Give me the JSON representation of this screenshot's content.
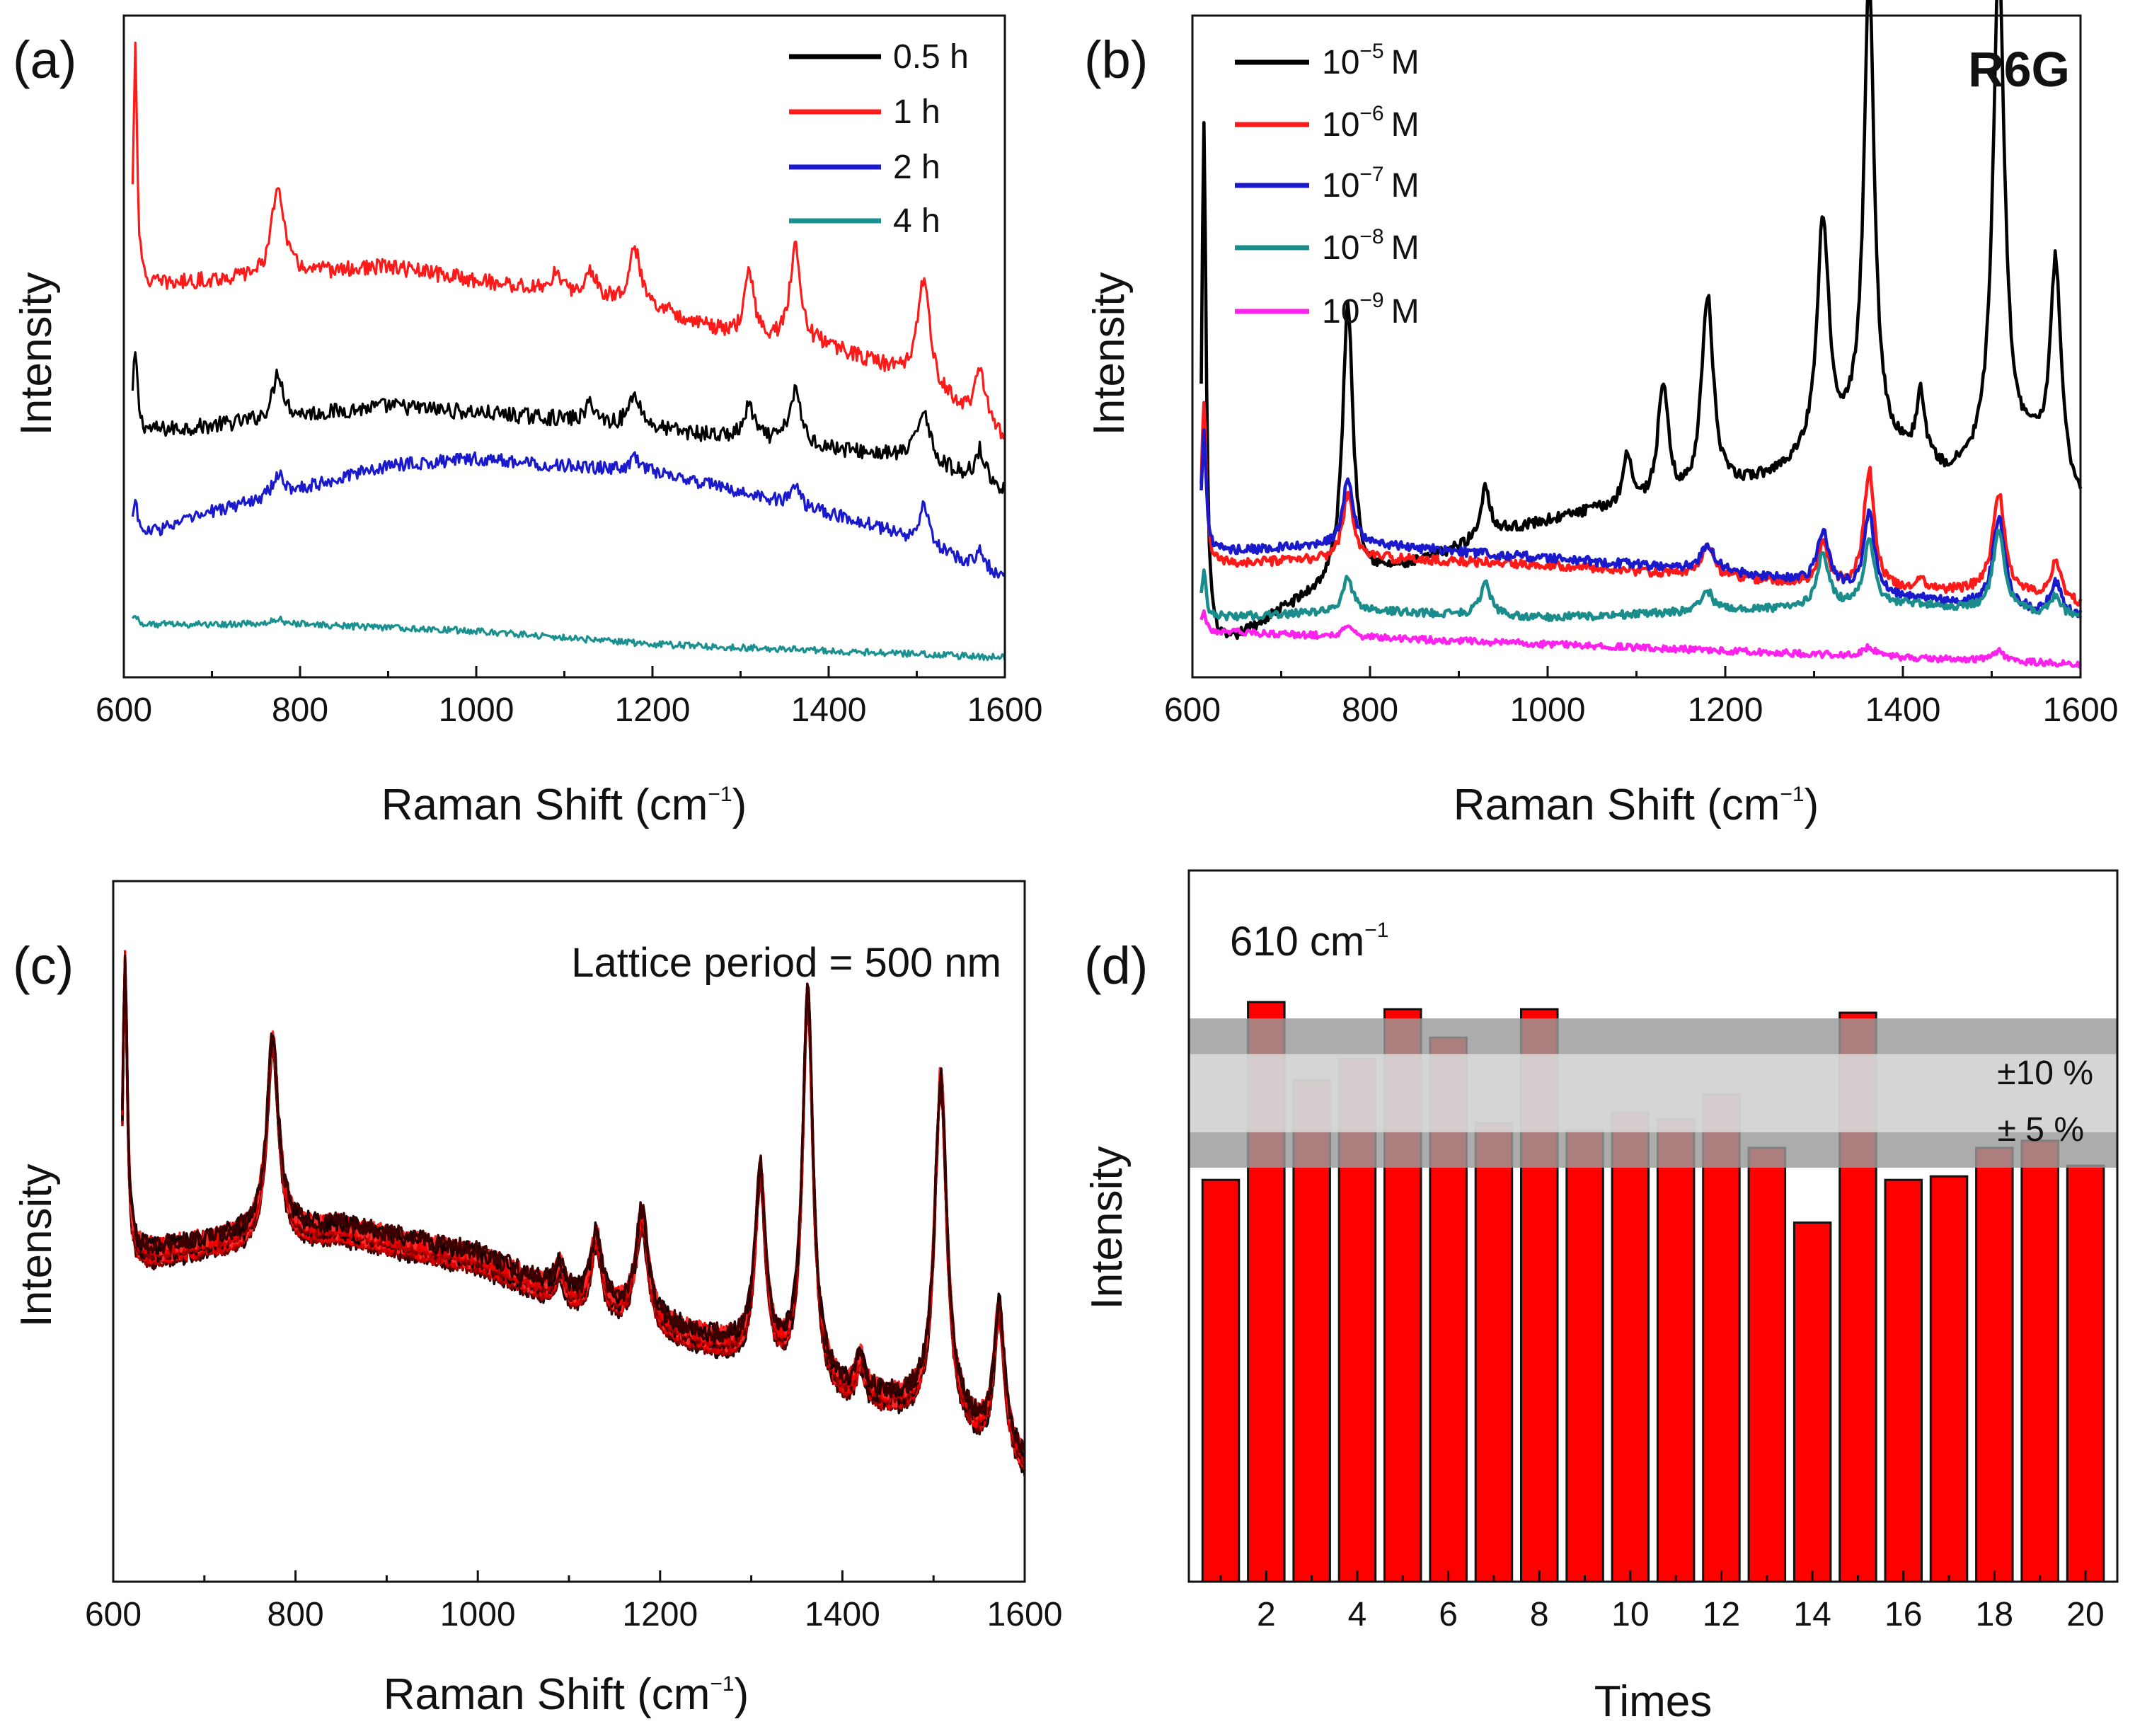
{
  "figure": {
    "background": "#ffffff",
    "axis_color": "#111111"
  },
  "chart_data": [
    {
      "id": "a",
      "type": "line",
      "panel_label": "(a)",
      "xlabel": "Raman Shift (cm",
      "xlabel_sup": "−1",
      "xlabel_tail": ")",
      "ylabel": "Intensity",
      "xlim": [
        600,
        1600
      ],
      "ylim": [
        0,
        100
      ],
      "xticks": [
        "600",
        "800",
        "1000",
        "1200",
        "1400",
        "1600"
      ],
      "series": [
        {
          "name": "0.5 h",
          "color": "#000000",
          "noise": 1.2,
          "baseline": [
            [
              610,
              37
            ],
            [
              700,
              38
            ],
            [
              900,
              41
            ],
            [
              1100,
              39
            ],
            [
              1300,
              36
            ],
            [
              1500,
              33
            ],
            [
              1600,
              28
            ]
          ],
          "peaks": [
            [
              613,
              12,
              3
            ],
            [
              775,
              7,
              7
            ],
            [
              1130,
              3,
              6
            ],
            [
              1180,
              5,
              8
            ],
            [
              1310,
              5,
              7
            ],
            [
              1362,
              8,
              8
            ],
            [
              1508,
              8,
              8
            ],
            [
              1572,
              5,
              7
            ]
          ]
        },
        {
          "name": "1 h",
          "color": "#ff1a1a",
          "noise": 1.2,
          "baseline": [
            [
              610,
              59
            ],
            [
              700,
              60
            ],
            [
              900,
              62
            ],
            [
              1050,
              59
            ],
            [
              1200,
              56
            ],
            [
              1300,
              51
            ],
            [
              1400,
              50
            ],
            [
              1500,
              45
            ],
            [
              1600,
              36
            ]
          ],
          "peaks": [
            [
              613,
              37,
              2.5
            ],
            [
              775,
              14,
              8
            ],
            [
              1090,
              3,
              6
            ],
            [
              1130,
              4,
              7
            ],
            [
              1180,
              8,
              8
            ],
            [
              1310,
              10,
              7
            ],
            [
              1362,
              15,
              7
            ],
            [
              1508,
              16,
              8
            ],
            [
              1572,
              8,
              7
            ]
          ]
        },
        {
          "name": "2 h",
          "color": "#1a1acc",
          "noise": 1.0,
          "baseline": [
            [
              610,
              21
            ],
            [
              700,
              25
            ],
            [
              900,
              32
            ],
            [
              1000,
              33
            ],
            [
              1200,
              31
            ],
            [
              1300,
              28
            ],
            [
              1450,
              23
            ],
            [
              1600,
              15
            ]
          ],
          "peaks": [
            [
              613,
              6,
              3
            ],
            [
              775,
              3,
              7
            ],
            [
              1180,
              2,
              7
            ],
            [
              1362,
              3,
              6
            ],
            [
              1508,
              6,
              7
            ],
            [
              1572,
              3,
              6
            ]
          ]
        },
        {
          "name": "4 h",
          "color": "#1a9090",
          "noise": 0.5,
          "baseline": [
            [
              610,
              8
            ],
            [
              800,
              8
            ],
            [
              1000,
              7
            ],
            [
              1200,
              5
            ],
            [
              1400,
              4
            ],
            [
              1600,
              3
            ]
          ],
          "peaks": [
            [
              613,
              1.5,
              3
            ],
            [
              775,
              0.8,
              8
            ]
          ]
        }
      ]
    },
    {
      "id": "b",
      "type": "line",
      "panel_label": "(b)",
      "annotation": "R6G",
      "xlabel": "Raman Shift (cm",
      "xlabel_sup": "−1",
      "xlabel_tail": ")",
      "ylabel": "Intensity",
      "xlim": [
        600,
        1600
      ],
      "ylim": [
        0,
        100
      ],
      "xticks": [
        "600",
        "800",
        "1000",
        "1200",
        "1400",
        "1600"
      ],
      "series": [
        {
          "name": "10",
          "sup": "−5",
          "unit": "M",
          "color": "#000000",
          "noise": 0.8,
          "baseline": [
            [
              610,
              5
            ],
            [
              640,
              5
            ],
            [
              700,
              10
            ],
            [
              760,
              14
            ],
            [
              850,
              17
            ],
            [
              950,
              22
            ],
            [
              1050,
              25
            ],
            [
              1150,
              26
            ],
            [
              1250,
              30
            ],
            [
              1350,
              36
            ],
            [
              1450,
              30
            ],
            [
              1550,
              34
            ],
            [
              1600,
              26
            ]
          ],
          "peaks": [
            [
              613,
              78,
              3
            ],
            [
              775,
              42,
              7
            ],
            [
              930,
              8,
              6
            ],
            [
              1090,
              8,
              6
            ],
            [
              1130,
              18,
              7
            ],
            [
              1180,
              30,
              8
            ],
            [
              1310,
              35,
              8
            ],
            [
              1362,
              70,
              7
            ],
            [
              1420,
              10,
              6
            ],
            [
              1508,
              75,
              8
            ],
            [
              1572,
              32,
              7
            ]
          ]
        },
        {
          "name": "10",
          "sup": "−6",
          "unit": "M",
          "color": "#ff1a1a",
          "noise": 0.7,
          "baseline": [
            [
              610,
              17
            ],
            [
              800,
              18
            ],
            [
              1000,
              17
            ],
            [
              1200,
              15
            ],
            [
              1300,
              14
            ],
            [
              1400,
              13
            ],
            [
              1500,
              13
            ],
            [
              1600,
              11
            ]
          ],
          "peaks": [
            [
              613,
              24,
              3
            ],
            [
              775,
              10,
              7
            ],
            [
              1180,
              5,
              8
            ],
            [
              1310,
              6,
              7
            ],
            [
              1362,
              18,
              7
            ],
            [
              1420,
              2,
              6
            ],
            [
              1508,
              15,
              8
            ],
            [
              1572,
              6,
              7
            ]
          ]
        },
        {
          "name": "10",
          "sup": "−7",
          "unit": "M",
          "color": "#1a1acc",
          "noise": 0.7,
          "baseline": [
            [
              610,
              19
            ],
            [
              800,
              20
            ],
            [
              1000,
              18
            ],
            [
              1200,
              16
            ],
            [
              1400,
              12
            ],
            [
              1600,
              9
            ]
          ],
          "peaks": [
            [
              613,
              18,
              3
            ],
            [
              775,
              10,
              7
            ],
            [
              1180,
              4,
              8
            ],
            [
              1310,
              8,
              8
            ],
            [
              1362,
              12,
              7
            ],
            [
              1508,
              14,
              8
            ],
            [
              1572,
              5,
              7
            ]
          ]
        },
        {
          "name": "10",
          "sup": "−8",
          "unit": "M",
          "color": "#1a8c8c",
          "noise": 0.6,
          "baseline": [
            [
              610,
              9
            ],
            [
              800,
              10
            ],
            [
              1000,
              9
            ],
            [
              1200,
              10
            ],
            [
              1400,
              11
            ],
            [
              1600,
              9
            ]
          ],
          "peaks": [
            [
              613,
              7,
              3
            ],
            [
              775,
              5,
              7
            ],
            [
              930,
              5,
              7
            ],
            [
              1180,
              3,
              8
            ],
            [
              1310,
              8,
              8
            ],
            [
              1362,
              10,
              7
            ],
            [
              1508,
              12,
              8
            ],
            [
              1572,
              3,
              7
            ]
          ]
        },
        {
          "name": "10",
          "sup": "−9",
          "unit": "M",
          "color": "#ff22ee",
          "noise": 0.5,
          "baseline": [
            [
              610,
              7
            ],
            [
              800,
              6
            ],
            [
              1000,
              5
            ],
            [
              1200,
              4
            ],
            [
              1400,
              3
            ],
            [
              1600,
              2
            ]
          ],
          "peaks": [
            [
              613,
              3,
              3
            ],
            [
              775,
              1.5,
              7
            ],
            [
              1362,
              1.5,
              7
            ],
            [
              1508,
              1.5,
              7
            ]
          ]
        }
      ]
    },
    {
      "id": "c",
      "type": "line",
      "panel_label": "(c)",
      "annotation": "Lattice period = 500 nm",
      "xlabel": "Raman Shift (cm",
      "xlabel_sup": "−1",
      "xlabel_tail": ")",
      "ylabel": "Intensity",
      "xlim": [
        600,
        1600
      ],
      "ylim": [
        0,
        100
      ],
      "xticks": [
        "600",
        "800",
        "1000",
        "1200",
        "1400",
        "1600"
      ],
      "overlay_count": 20,
      "overlay_colors": [
        "#1a0000",
        "#3d0000",
        "#660000",
        "#8c0000",
        "#b30000",
        "#cc0000",
        "#e60000",
        "#ff0000",
        "#ff2a2a"
      ],
      "baseline": [
        [
          610,
          48
        ],
        [
          700,
          50
        ],
        [
          850,
          52
        ],
        [
          1000,
          48
        ],
        [
          1100,
          42
        ],
        [
          1200,
          38
        ],
        [
          1300,
          34
        ],
        [
          1400,
          28
        ],
        [
          1500,
          26
        ],
        [
          1600,
          18
        ]
      ],
      "spread": 5,
      "peaks": [
        [
          613,
          42,
          3
        ],
        [
          775,
          28,
          8
        ],
        [
          1090,
          4,
          6
        ],
        [
          1130,
          10,
          7
        ],
        [
          1180,
          15,
          8
        ],
        [
          1310,
          26,
          7
        ],
        [
          1362,
          55,
          7
        ],
        [
          1420,
          5,
          6
        ],
        [
          1508,
          48,
          8
        ],
        [
          1572,
          20,
          7
        ]
      ]
    },
    {
      "id": "d",
      "type": "bar",
      "panel_label": "(d)",
      "annotation": "610 cm",
      "annotation_sup": "−1",
      "xlabel": "Times",
      "ylabel": "Intensity",
      "xlim": [
        0.3,
        20.7
      ],
      "ylim": [
        0,
        100
      ],
      "categories": [
        1,
        2,
        3,
        4,
        5,
        6,
        7,
        8,
        9,
        10,
        11,
        12,
        13,
        14,
        15,
        16,
        17,
        18,
        19,
        20
      ],
      "xticks": [
        "2",
        "4",
        "6",
        "8",
        "10",
        "12",
        "14",
        "16",
        "18",
        "20"
      ],
      "values": [
        56.5,
        81.5,
        70.5,
        73.5,
        80.5,
        76.5,
        64.5,
        80.5,
        63.5,
        66.0,
        65.0,
        68.5,
        61.0,
        50.5,
        80.0,
        56.5,
        57.0,
        61.0,
        62.0,
        58.5
      ],
      "bar_color": "#ff0000",
      "bands": [
        {
          "label": "±10 %",
          "lo": 58.2,
          "hi": 79.2,
          "color": "#9a9a9a"
        },
        {
          "label": "± 5 %",
          "lo": 63.2,
          "hi": 74.2,
          "color": "#dedede"
        }
      ]
    }
  ]
}
